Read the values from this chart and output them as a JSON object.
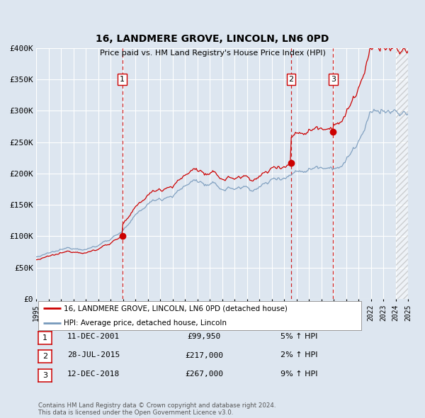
{
  "title": "16, LANDMERE GROVE, LINCOLN, LN6 0PD",
  "subtitle": "Price paid vs. HM Land Registry's House Price Index (HPI)",
  "background_color": "#dde6f0",
  "plot_bg_color": "#dde6f0",
  "grid_color": "#ffffff",
  "red_line_color": "#cc0000",
  "blue_line_color": "#7799bb",
  "ylim": [
    0,
    400000
  ],
  "ytick_labels": [
    "£0",
    "£50K",
    "£100K",
    "£150K",
    "£200K",
    "£250K",
    "£300K",
    "£350K",
    "£400K"
  ],
  "ytick_values": [
    0,
    50000,
    100000,
    150000,
    200000,
    250000,
    300000,
    350000,
    400000
  ],
  "xstart_year": 1995,
  "xend_year": 2025,
  "sale_times": [
    2001.958,
    2015.573,
    2018.958
  ],
  "sale_prices": [
    99950,
    217000,
    267000
  ],
  "sale_labels": [
    "1",
    "2",
    "3"
  ],
  "vline_color": "#cc0000",
  "dot_color": "#cc0000",
  "legend_red_label": "16, LANDMERE GROVE, LINCOLN, LN6 0PD (detached house)",
  "legend_blue_label": "HPI: Average price, detached house, Lincoln",
  "table_rows": [
    {
      "num": "1",
      "date": "11-DEC-2001",
      "price": "£99,950",
      "hpi": "5% ↑ HPI"
    },
    {
      "num": "2",
      "date": "28-JUL-2015",
      "price": "£217,000",
      "hpi": "2% ↑ HPI"
    },
    {
      "num": "3",
      "date": "12-DEC-2018",
      "price": "£267,000",
      "hpi": "9% ↑ HPI"
    }
  ],
  "footnote": "Contains HM Land Registry data © Crown copyright and database right 2024.\nThis data is licensed under the Open Government Licence v3.0."
}
